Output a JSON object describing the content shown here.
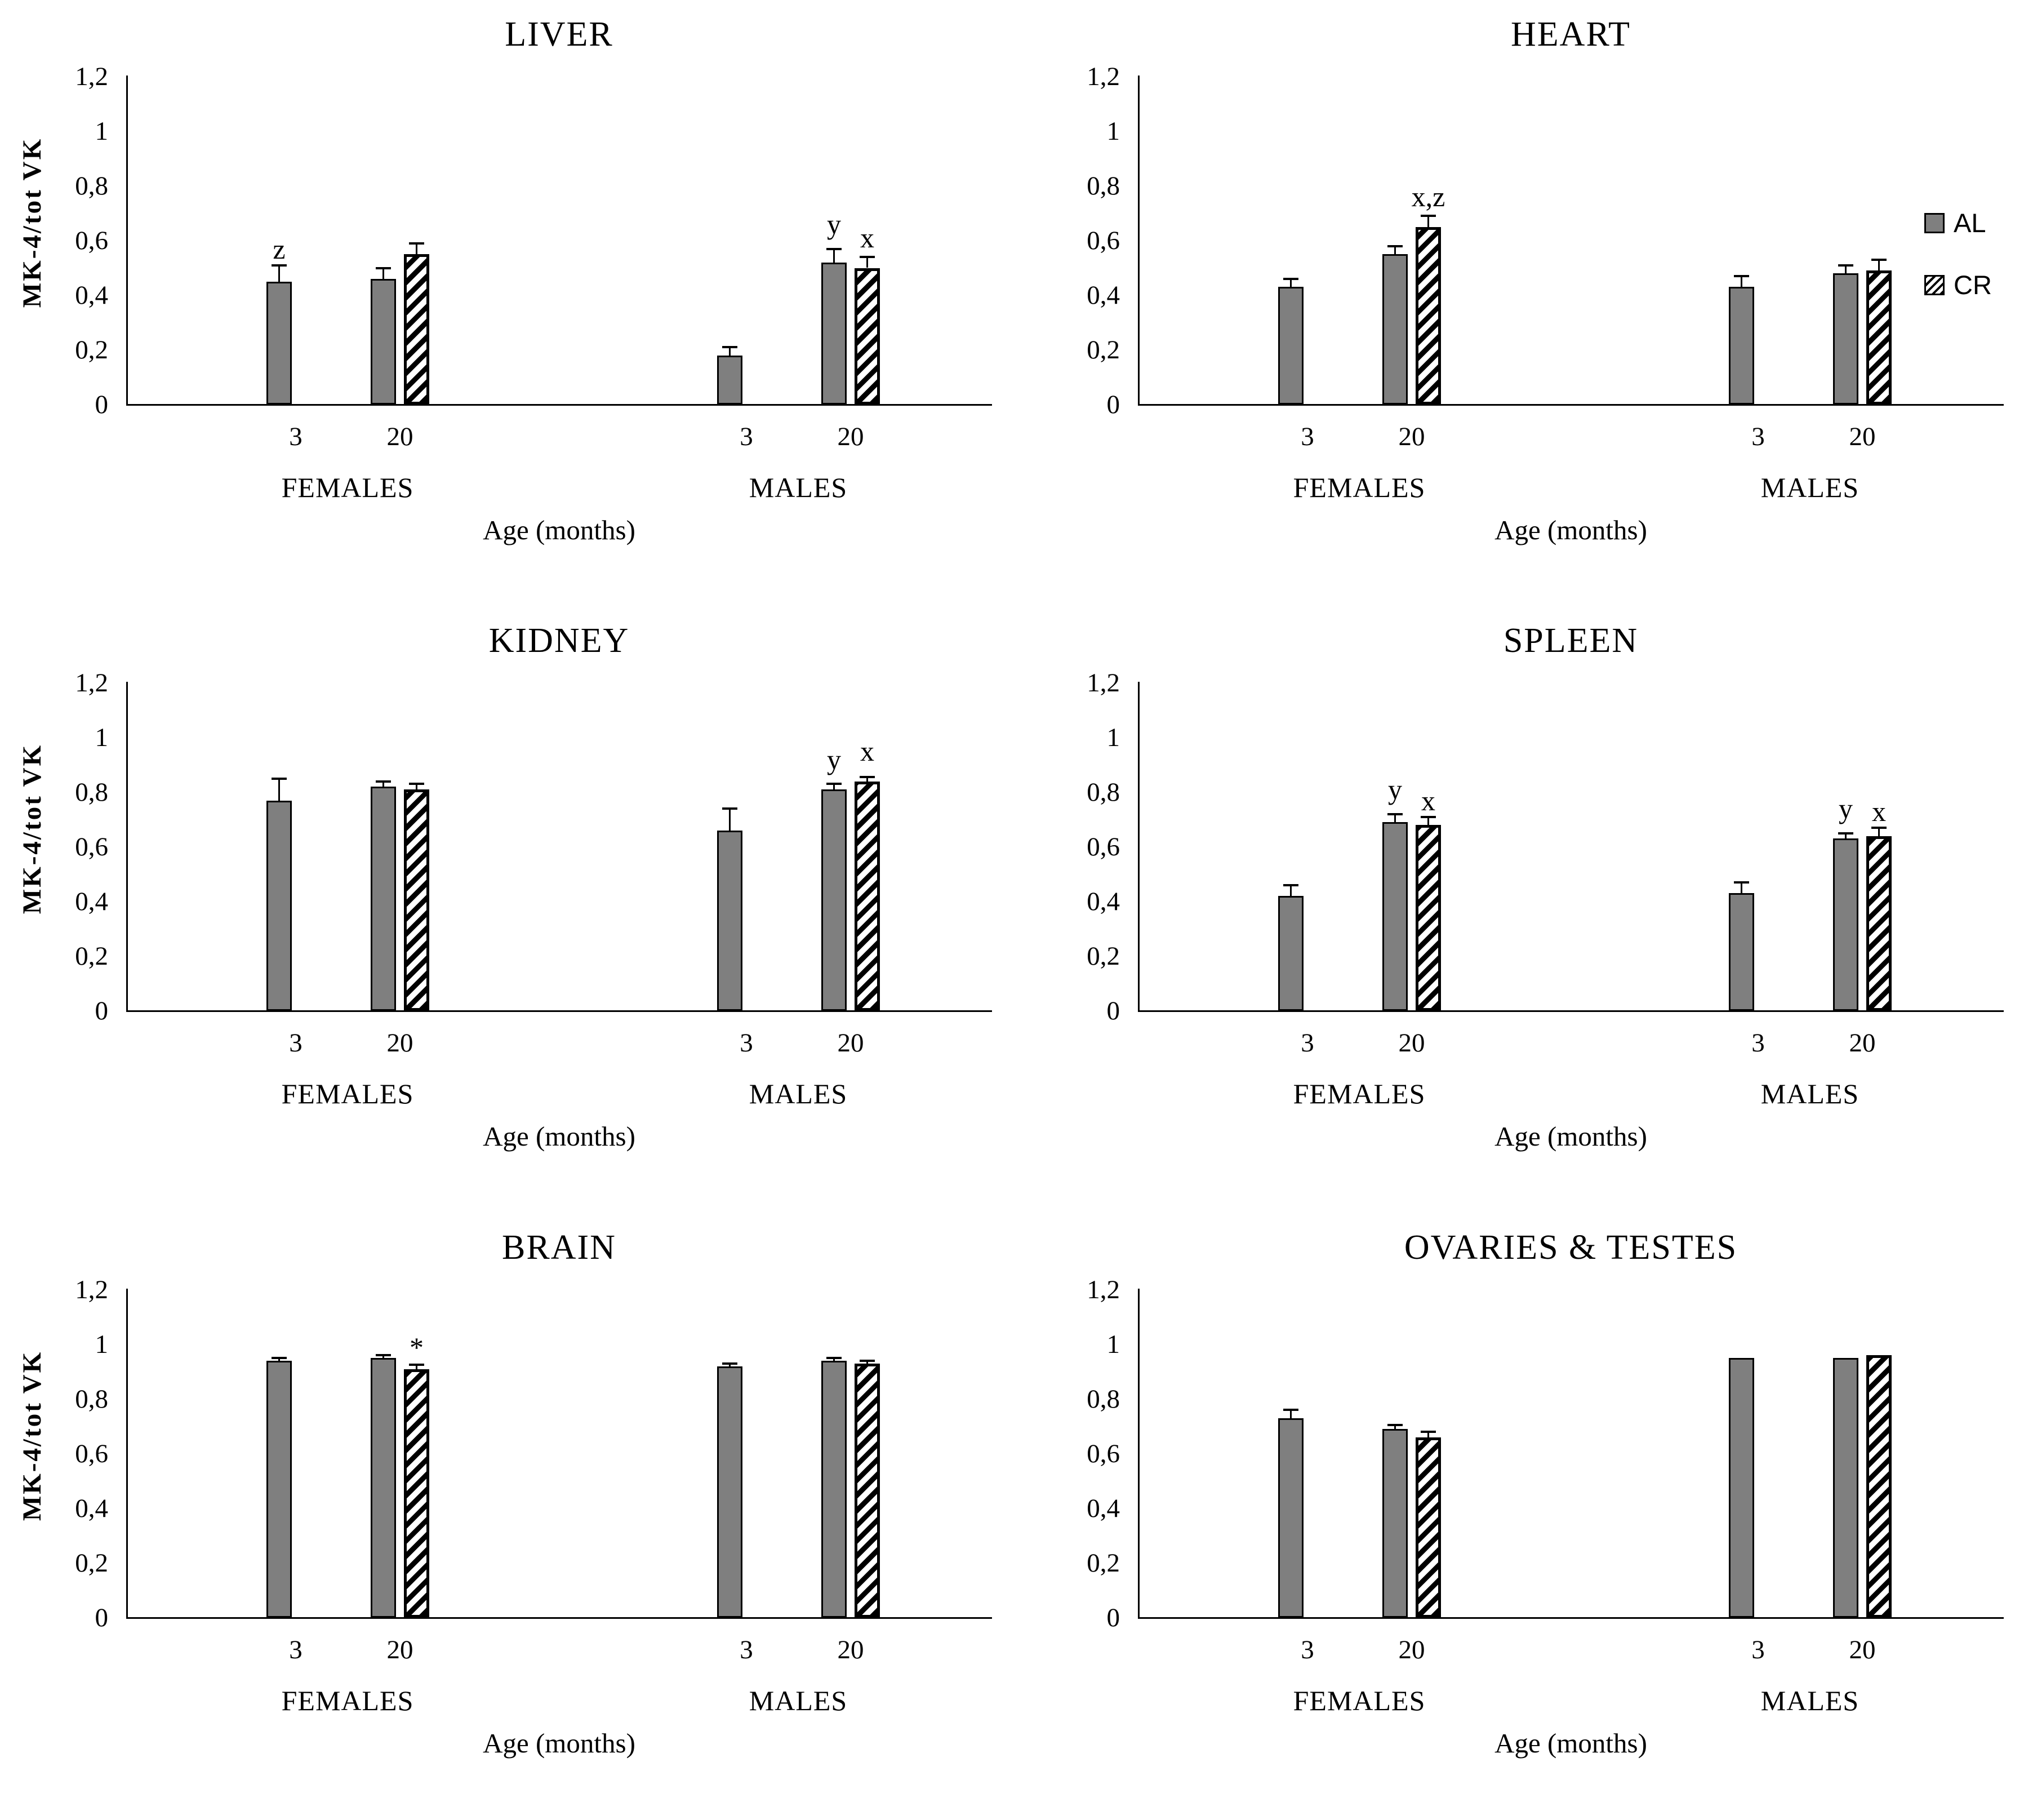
{
  "page": {
    "background": "#ffffff",
    "text_color": "#000000"
  },
  "colors": {
    "al_fill": "#7f7f7f",
    "bar_border": "#000000",
    "cr_hatch": "#000000",
    "cr_background": "#ffffff"
  },
  "legend": {
    "position": "right side of HEART chart",
    "items": [
      {
        "label": "AL",
        "swatch": "solid-gray-square"
      },
      {
        "label": "CR",
        "swatch": "diagonal-hatch-square"
      }
    ]
  },
  "axis": {
    "y_title": "MK-4/tot VK",
    "x_title": "Age (months)",
    "y_ticks": [
      {
        "label": "0",
        "value": 0
      },
      {
        "label": "0,2",
        "value": 0.2
      },
      {
        "label": "0,4",
        "value": 0.4
      },
      {
        "label": "0,6",
        "value": 0.6
      },
      {
        "label": "0,8",
        "value": 0.8
      },
      {
        "label": "1",
        "value": 1.0
      },
      {
        "label": "1,2",
        "value": 1.2
      }
    ],
    "categories": [
      {
        "group": "FEMALES",
        "age": "3"
      },
      {
        "group": "FEMALES",
        "age": "20"
      },
      {
        "group": "MALES",
        "age": "3"
      },
      {
        "group": "MALES",
        "age": "20"
      }
    ],
    "group_labels": [
      "FEMALES",
      "MALES"
    ]
  },
  "chart_data": [
    {
      "type": "bar",
      "title": "LIVER",
      "ylabel": "MK-4/tot VK",
      "xlabel": "Age (months)",
      "ylim": [
        0,
        1.2
      ],
      "grid": false,
      "legend_visible": false,
      "series_names": [
        "AL",
        "CR"
      ],
      "bars": [
        {
          "group": "FEMALES",
          "age": "3",
          "series": "AL",
          "value": 0.45,
          "error": 0.06,
          "note": "z",
          "note_level": 0.57
        },
        {
          "group": "FEMALES",
          "age": "20",
          "series": "AL",
          "value": 0.46,
          "error": 0.04
        },
        {
          "group": "FEMALES",
          "age": "20",
          "series": "CR",
          "value": 0.55,
          "error": 0.04
        },
        {
          "group": "MALES",
          "age": "3",
          "series": "AL",
          "value": 0.18,
          "error": 0.03
        },
        {
          "group": "MALES",
          "age": "20",
          "series": "AL",
          "value": 0.52,
          "error": 0.05,
          "note": "y",
          "note_level": 0.66
        },
        {
          "group": "MALES",
          "age": "20",
          "series": "CR",
          "value": 0.5,
          "error": 0.04,
          "note": "x",
          "note_level": 0.61
        }
      ]
    },
    {
      "type": "bar",
      "title": "HEART",
      "ylabel": "",
      "xlabel": "Age (months)",
      "ylim": [
        0,
        1.2
      ],
      "grid": false,
      "legend_visible": true,
      "series_names": [
        "AL",
        "CR"
      ],
      "bars": [
        {
          "group": "FEMALES",
          "age": "3",
          "series": "AL",
          "value": 0.43,
          "error": 0.03
        },
        {
          "group": "FEMALES",
          "age": "20",
          "series": "AL",
          "value": 0.55,
          "error": 0.03
        },
        {
          "group": "FEMALES",
          "age": "20",
          "series": "CR",
          "value": 0.65,
          "error": 0.04,
          "note": "x,z",
          "note_level": 0.76
        },
        {
          "group": "MALES",
          "age": "3",
          "series": "AL",
          "value": 0.43,
          "error": 0.04
        },
        {
          "group": "MALES",
          "age": "20",
          "series": "AL",
          "value": 0.48,
          "error": 0.03
        },
        {
          "group": "MALES",
          "age": "20",
          "series": "CR",
          "value": 0.49,
          "error": 0.04
        }
      ]
    },
    {
      "type": "bar",
      "title": "KIDNEY",
      "ylabel": "MK-4/tot VK",
      "xlabel": "Age (months)",
      "ylim": [
        0,
        1.2
      ],
      "grid": false,
      "legend_visible": false,
      "series_names": [
        "AL",
        "CR"
      ],
      "bars": [
        {
          "group": "FEMALES",
          "age": "3",
          "series": "AL",
          "value": 0.77,
          "error": 0.08
        },
        {
          "group": "FEMALES",
          "age": "20",
          "series": "AL",
          "value": 0.82,
          "error": 0.02
        },
        {
          "group": "FEMALES",
          "age": "20",
          "series": "CR",
          "value": 0.81,
          "error": 0.02
        },
        {
          "group": "MALES",
          "age": "3",
          "series": "AL",
          "value": 0.66,
          "error": 0.08
        },
        {
          "group": "MALES",
          "age": "20",
          "series": "AL",
          "value": 0.81,
          "error": 0.02,
          "note": "y",
          "note_level": 0.92
        },
        {
          "group": "MALES",
          "age": "20",
          "series": "CR",
          "value": 0.84,
          "error": 0.015,
          "note": "x",
          "note_level": 0.95
        }
      ]
    },
    {
      "type": "bar",
      "title": "SPLEEN",
      "ylabel": "",
      "xlabel": "Age (months)",
      "ylim": [
        0,
        1.2
      ],
      "grid": false,
      "legend_visible": false,
      "series_names": [
        "AL",
        "CR"
      ],
      "bars": [
        {
          "group": "FEMALES",
          "age": "3",
          "series": "AL",
          "value": 0.42,
          "error": 0.04
        },
        {
          "group": "FEMALES",
          "age": "20",
          "series": "AL",
          "value": 0.69,
          "error": 0.03,
          "note": "y",
          "note_level": 0.81
        },
        {
          "group": "FEMALES",
          "age": "20",
          "series": "CR",
          "value": 0.68,
          "error": 0.03,
          "note": "x",
          "note_level": 0.77
        },
        {
          "group": "MALES",
          "age": "3",
          "series": "AL",
          "value": 0.43,
          "error": 0.04
        },
        {
          "group": "MALES",
          "age": "20",
          "series": "AL",
          "value": 0.63,
          "error": 0.02,
          "note": "y",
          "note_level": 0.74
        },
        {
          "group": "MALES",
          "age": "20",
          "series": "CR",
          "value": 0.64,
          "error": 0.03,
          "note": "x",
          "note_level": 0.73
        }
      ]
    },
    {
      "type": "bar",
      "title": "BRAIN",
      "ylabel": "MK-4/tot VK",
      "xlabel": "Age (months)",
      "ylim": [
        0,
        1.2
      ],
      "grid": false,
      "legend_visible": false,
      "series_names": [
        "AL",
        "CR"
      ],
      "bars": [
        {
          "group": "FEMALES",
          "age": "3",
          "series": "AL",
          "value": 0.94,
          "error": 0.01
        },
        {
          "group": "FEMALES",
          "age": "20",
          "series": "AL",
          "value": 0.95,
          "error": 0.01
        },
        {
          "group": "FEMALES",
          "age": "20",
          "series": "CR",
          "value": 0.91,
          "error": 0.015,
          "note": "*",
          "note_level": 0.99
        },
        {
          "group": "MALES",
          "age": "3",
          "series": "AL",
          "value": 0.92,
          "error": 0.01
        },
        {
          "group": "MALES",
          "age": "20",
          "series": "AL",
          "value": 0.94,
          "error": 0.01
        },
        {
          "group": "MALES",
          "age": "20",
          "series": "CR",
          "value": 0.93,
          "error": 0.01
        }
      ]
    },
    {
      "type": "bar",
      "title": "OVARIES & TESTES",
      "ylabel": "",
      "xlabel": "Age (months)",
      "ylim": [
        0,
        1.2
      ],
      "grid": false,
      "legend_visible": false,
      "series_names": [
        "AL",
        "CR"
      ],
      "bars": [
        {
          "group": "FEMALES",
          "age": "3",
          "series": "AL",
          "value": 0.73,
          "error": 0.03
        },
        {
          "group": "FEMALES",
          "age": "20",
          "series": "AL",
          "value": 0.69,
          "error": 0.015
        },
        {
          "group": "FEMALES",
          "age": "20",
          "series": "CR",
          "value": 0.66,
          "error": 0.02
        },
        {
          "group": "MALES",
          "age": "3",
          "series": "AL",
          "value": 0.95,
          "error": 0
        },
        {
          "group": "MALES",
          "age": "20",
          "series": "AL",
          "value": 0.95,
          "error": 0
        },
        {
          "group": "MALES",
          "age": "20",
          "series": "CR",
          "value": 0.96,
          "error": 0
        }
      ]
    }
  ]
}
